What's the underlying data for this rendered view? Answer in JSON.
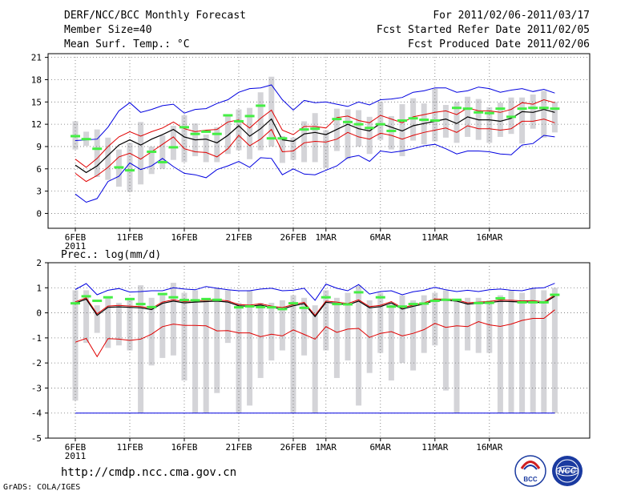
{
  "header": {
    "title": "DERF/NCC/BCC Monthly Forecast",
    "member_size": "Member Size=40",
    "variable": "Mean Surf. Temp.: °C",
    "period": "For 2011/02/06-2011/03/17",
    "started": "Fcst Started Refer Date 2011/02/05",
    "produced": "Fcst Produced Date 2011/02/06"
  },
  "footer": {
    "url": "http://cmdp.ncc.cma.gov.cn",
    "grads": "GrADS: COLA/IGES",
    "logo_bcc": "BCC",
    "logo_ncc": "NCC"
  },
  "colors": {
    "mean": "#000000",
    "std": "#e00000",
    "envelope": "#0000e0",
    "bar": "#d4d4d8",
    "obs": "#44ee44",
    "grid": "#707070"
  },
  "chart_data": [
    {
      "type": "line",
      "name": "temperature",
      "title": "Mean Surf. Temp.: °C",
      "x_tick_labels": [
        "6FEB",
        "11FEB",
        "16FEB",
        "21FEB",
        "26FEB",
        "1MAR",
        "6MAR",
        "11MAR",
        "16MAR"
      ],
      "x_tick_days": [
        0,
        5,
        10,
        15,
        20,
        23,
        28,
        33,
        38
      ],
      "x_year_label": "2011",
      "ylim": [
        -2,
        21.5
      ],
      "y_ticks": [
        0,
        3,
        6,
        9,
        12,
        15,
        18,
        21
      ],
      "series": {
        "mean": [
          6.5,
          5.5,
          6.4,
          7.8,
          9.2,
          9.9,
          9.2,
          10.0,
          10.6,
          11.3,
          10.3,
          9.9,
          10.0,
          9.5,
          10.5,
          11.8,
          10.4,
          11.4,
          12.7,
          9.9,
          9.7,
          10.7,
          10.9,
          10.6,
          11.3,
          12.0,
          11.4,
          11.1,
          12.1,
          11.6,
          11.1,
          11.8,
          12.1,
          12.4,
          12.7,
          12.1,
          13.0,
          12.6,
          12.6,
          12.4,
          12.8,
          13.7,
          13.6,
          14.0,
          13.6
        ],
        "upper": [
          7.3,
          6.2,
          7.4,
          9.0,
          10.3,
          11.0,
          10.4,
          11.0,
          11.5,
          12.3,
          11.4,
          11.0,
          11.2,
          11.3,
          12.3,
          12.6,
          11.5,
          12.8,
          13.9,
          11.2,
          10.6,
          11.7,
          11.7,
          11.5,
          12.9,
          13.1,
          12.5,
          12.2,
          13.2,
          12.7,
          12.2,
          13.0,
          13.3,
          13.6,
          13.8,
          13.3,
          14.2,
          13.8,
          13.8,
          13.6,
          14.0,
          14.9,
          14.7,
          15.3,
          14.9
        ],
        "lower": [
          5.4,
          4.3,
          5.1,
          6.2,
          7.6,
          8.1,
          7.3,
          8.3,
          9.3,
          10.3,
          8.7,
          8.3,
          8.2,
          7.6,
          8.7,
          10.5,
          9.1,
          10.0,
          11.3,
          8.3,
          8.4,
          9.5,
          9.7,
          9.6,
          10.0,
          10.9,
          10.3,
          10.0,
          10.8,
          10.5,
          10.0,
          10.5,
          10.9,
          11.2,
          11.5,
          10.9,
          11.8,
          11.4,
          11.4,
          11.2,
          11.4,
          12.4,
          12.4,
          12.7,
          12.2
        ],
        "max": [
          9.8,
          9.9,
          10.0,
          11.6,
          13.8,
          14.9,
          13.6,
          14.0,
          14.5,
          14.7,
          13.5,
          14.0,
          14.1,
          14.8,
          15.3,
          16.3,
          16.8,
          16.9,
          17.3,
          15.3,
          13.9,
          15.2,
          14.9,
          15.0,
          14.7,
          14.4,
          15.0,
          14.6,
          15.3,
          15.4,
          15.6,
          16.3,
          16.5,
          16.9,
          16.9,
          16.3,
          16.5,
          17.0,
          16.8,
          16.3,
          16.6,
          16.8,
          16.4,
          16.7,
          16.2
        ],
        "min": [
          2.6,
          1.5,
          2.0,
          4.3,
          5.0,
          6.8,
          5.9,
          6.4,
          7.4,
          6.3,
          5.4,
          5.2,
          4.8,
          5.9,
          6.4,
          7.0,
          6.2,
          7.5,
          7.4,
          5.2,
          6.0,
          5.3,
          5.2,
          5.8,
          6.4,
          7.5,
          7.8,
          7.0,
          8.4,
          8.2,
          8.4,
          8.7,
          9.1,
          9.3,
          8.7,
          8.0,
          8.4,
          8.4,
          8.3,
          8.0,
          7.9,
          9.2,
          9.4,
          10.5,
          10.3
        ]
      },
      "bars": [
        [
          8.6,
          12.4
        ],
        [
          9.1,
          11.0
        ],
        [
          4.9,
          11.3
        ],
        [
          4.5,
          10.2
        ],
        [
          3.6,
          8.6
        ],
        [
          2.9,
          9.5
        ],
        [
          3.9,
          12.3
        ],
        [
          5.3,
          9.0
        ],
        [
          6.0,
          10.5
        ],
        [
          7.2,
          11.8
        ],
        [
          6.9,
          13.2
        ],
        [
          7.7,
          12.1
        ],
        [
          6.9,
          10.6
        ],
        [
          6.9,
          11.6
        ],
        [
          8.0,
          13.1
        ],
        [
          8.5,
          14.0
        ],
        [
          7.3,
          14.2
        ],
        [
          8.5,
          16.3
        ],
        [
          9.0,
          18.4
        ],
        [
          6.8,
          10.4
        ],
        [
          7.2,
          10.2
        ],
        [
          6.9,
          12.4
        ],
        [
          6.9,
          13.5
        ],
        [
          6.1,
          11.2
        ],
        [
          8.4,
          14.1
        ],
        [
          7.3,
          14.0
        ],
        [
          9.0,
          13.9
        ],
        [
          8.0,
          13.0
        ],
        [
          9.9,
          15.0
        ],
        [
          8.6,
          13.1
        ],
        [
          7.7,
          14.7
        ],
        [
          9.8,
          15.5
        ],
        [
          9.3,
          14.8
        ],
        [
          9.7,
          16.8
        ],
        [
          10.2,
          14.6
        ],
        [
          9.5,
          15.0
        ],
        [
          10.3,
          15.7
        ],
        [
          9.9,
          15.4
        ],
        [
          9.5,
          14.3
        ],
        [
          10.3,
          14.9
        ],
        [
          10.7,
          15.6
        ],
        [
          9.4,
          15.6
        ],
        [
          11.4,
          16.0
        ],
        [
          10.2,
          16.5
        ],
        [
          10.9,
          15.0
        ]
      ],
      "obs": [
        10.4,
        10.0,
        8.7,
        null,
        6.2,
        5.8,
        null,
        8.3,
        6.9,
        8.9,
        11.6,
        10.7,
        11.0,
        10.7,
        13.2,
        12.4,
        13.1,
        14.5,
        10.1,
        10.1,
        null,
        11.3,
        11.4,
        null,
        12.7,
        12.3,
        12.0,
        11.5,
        12.0,
        11.1,
        12.5,
        12.8,
        12.6,
        12.5,
        null,
        14.2,
        14.1,
        13.6,
        13.5,
        14.1,
        13.0,
        14.1,
        14.2,
        14.2,
        14.1
      ]
    },
    {
      "type": "line",
      "name": "precipitation",
      "title": "Prec.: log(mm/d)",
      "x_tick_labels": [
        "6FEB",
        "11FEB",
        "16FEB",
        "21FEB",
        "26FEB",
        "1MAR",
        "6MAR",
        "11MAR",
        "16MAR"
      ],
      "x_tick_days": [
        0,
        5,
        10,
        15,
        20,
        23,
        28,
        33,
        38
      ],
      "x_year_label": "2011",
      "ylim": [
        -5,
        2
      ],
      "y_ticks": [
        -5,
        -4,
        -3,
        -2,
        -1,
        0,
        1,
        2
      ],
      "floor": -4,
      "series": {
        "mean": [
          0.39,
          0.55,
          -0.1,
          0.22,
          0.24,
          0.22,
          0.2,
          0.13,
          0.38,
          0.47,
          0.4,
          0.43,
          0.45,
          0.47,
          0.43,
          0.28,
          0.26,
          0.31,
          0.22,
          0.16,
          0.28,
          0.37,
          -0.15,
          0.42,
          0.38,
          0.32,
          0.47,
          0.2,
          0.25,
          0.4,
          0.15,
          0.26,
          0.35,
          0.5,
          0.5,
          0.47,
          0.35,
          0.38,
          0.41,
          0.46,
          0.45,
          0.43,
          0.44,
          0.39,
          0.66
        ],
        "upper": [
          0.44,
          0.6,
          -0.04,
          0.27,
          0.3,
          0.27,
          0.25,
          0.18,
          0.43,
          0.52,
          0.45,
          0.48,
          0.5,
          0.52,
          0.48,
          0.33,
          0.31,
          0.36,
          0.27,
          0.21,
          0.33,
          0.42,
          -0.1,
          0.47,
          0.43,
          0.37,
          0.52,
          0.25,
          0.3,
          0.45,
          0.2,
          0.31,
          0.4,
          0.55,
          0.55,
          0.52,
          0.4,
          0.43,
          0.46,
          0.51,
          0.5,
          0.48,
          0.49,
          0.44,
          0.71
        ],
        "lower": [
          -1.17,
          -1.02,
          -1.75,
          -1.03,
          -1.05,
          -1.1,
          -1.05,
          -0.85,
          -0.55,
          -0.45,
          -0.5,
          -0.5,
          -0.52,
          -0.72,
          -0.71,
          -0.8,
          -0.8,
          -0.95,
          -0.85,
          -0.92,
          -0.68,
          -0.86,
          -1.05,
          -0.55,
          -0.78,
          -0.65,
          -0.62,
          -0.98,
          -0.82,
          -0.75,
          -0.92,
          -0.82,
          -0.67,
          -0.42,
          -0.58,
          -0.52,
          -0.55,
          -0.35,
          -0.48,
          -0.54,
          -0.45,
          -0.3,
          -0.22,
          -0.22,
          0.12
        ],
        "max": [
          0.93,
          1.17,
          0.72,
          0.9,
          0.97,
          0.83,
          0.85,
          0.88,
          0.88,
          1.0,
          0.95,
          0.92,
          1.05,
          0.98,
          0.92,
          0.88,
          0.88,
          0.95,
          0.98,
          0.88,
          0.9,
          0.98,
          0.5,
          1.15,
          0.98,
          0.88,
          1.13,
          0.75,
          0.85,
          0.88,
          0.72,
          0.84,
          0.9,
          1.02,
          0.92,
          0.85,
          0.9,
          0.85,
          0.92,
          0.95,
          0.9,
          0.88,
          0.98,
          1.0,
          1.18
        ]
      },
      "bars": [
        [
          -3.5,
          0.9
        ],
        [
          -1.2,
          0.9
        ],
        [
          -0.8,
          0.3
        ],
        [
          -1.4,
          0.6
        ],
        [
          -1.3,
          0.4
        ],
        [
          -1.5,
          0.6
        ],
        [
          -4.0,
          1.1
        ],
        [
          -2.1,
          0.6
        ],
        [
          -1.8,
          0.7
        ],
        [
          -1.7,
          1.2
        ],
        [
          -2.7,
          0.8
        ],
        [
          -4.0,
          0.9
        ],
        [
          -4.0,
          0.5
        ],
        [
          -3.2,
          1.0
        ],
        [
          -1.2,
          0.9
        ],
        [
          -4.0,
          0.4
        ],
        [
          -3.7,
          0.9
        ],
        [
          -2.6,
          0.4
        ],
        [
          -1.9,
          0.4
        ],
        [
          -1.5,
          0.5
        ],
        [
          -4.0,
          0.7
        ],
        [
          -1.7,
          0.6
        ],
        [
          -4.0,
          0.3
        ],
        [
          -1.5,
          0.9
        ],
        [
          -2.6,
          0.6
        ],
        [
          -1.9,
          0.8
        ],
        [
          -3.7,
          1.1
        ],
        [
          -2.4,
          0.5
        ],
        [
          -1.6,
          0.8
        ],
        [
          -2.7,
          0.4
        ],
        [
          -2.0,
          0.7
        ],
        [
          -2.3,
          0.5
        ],
        [
          -1.6,
          0.7
        ],
        [
          -1.3,
          0.8
        ],
        [
          -3.1,
          0.9
        ],
        [
          -4.0,
          0.5
        ],
        [
          -1.5,
          0.6
        ],
        [
          -1.6,
          0.6
        ],
        [
          -1.6,
          0.5
        ],
        [
          -4.0,
          0.7
        ],
        [
          -4.0,
          0.9
        ],
        [
          -4.0,
          0.8
        ],
        [
          -4.0,
          1.0
        ],
        [
          -4.0,
          0.9
        ],
        [
          -4.0,
          1.0
        ]
      ],
      "obs": [
        0.38,
        0.66,
        0.48,
        0.62,
        null,
        0.55,
        0.35,
        0.23,
        0.75,
        0.62,
        0.51,
        0.5,
        0.55,
        0.52,
        null,
        0.22,
        0.26,
        0.23,
        0.22,
        0.15,
        0.38,
        0.2,
        null,
        0.62,
        0.35,
        0.34,
        0.82,
        null,
        0.62,
        0.25,
        0.25,
        0.35,
        0.37,
        0.48,
        0.52,
        0.52,
        null,
        0.39,
        0.4,
        0.58,
        null,
        0.42,
        0.42,
        0.42,
        0.72
      ]
    }
  ]
}
